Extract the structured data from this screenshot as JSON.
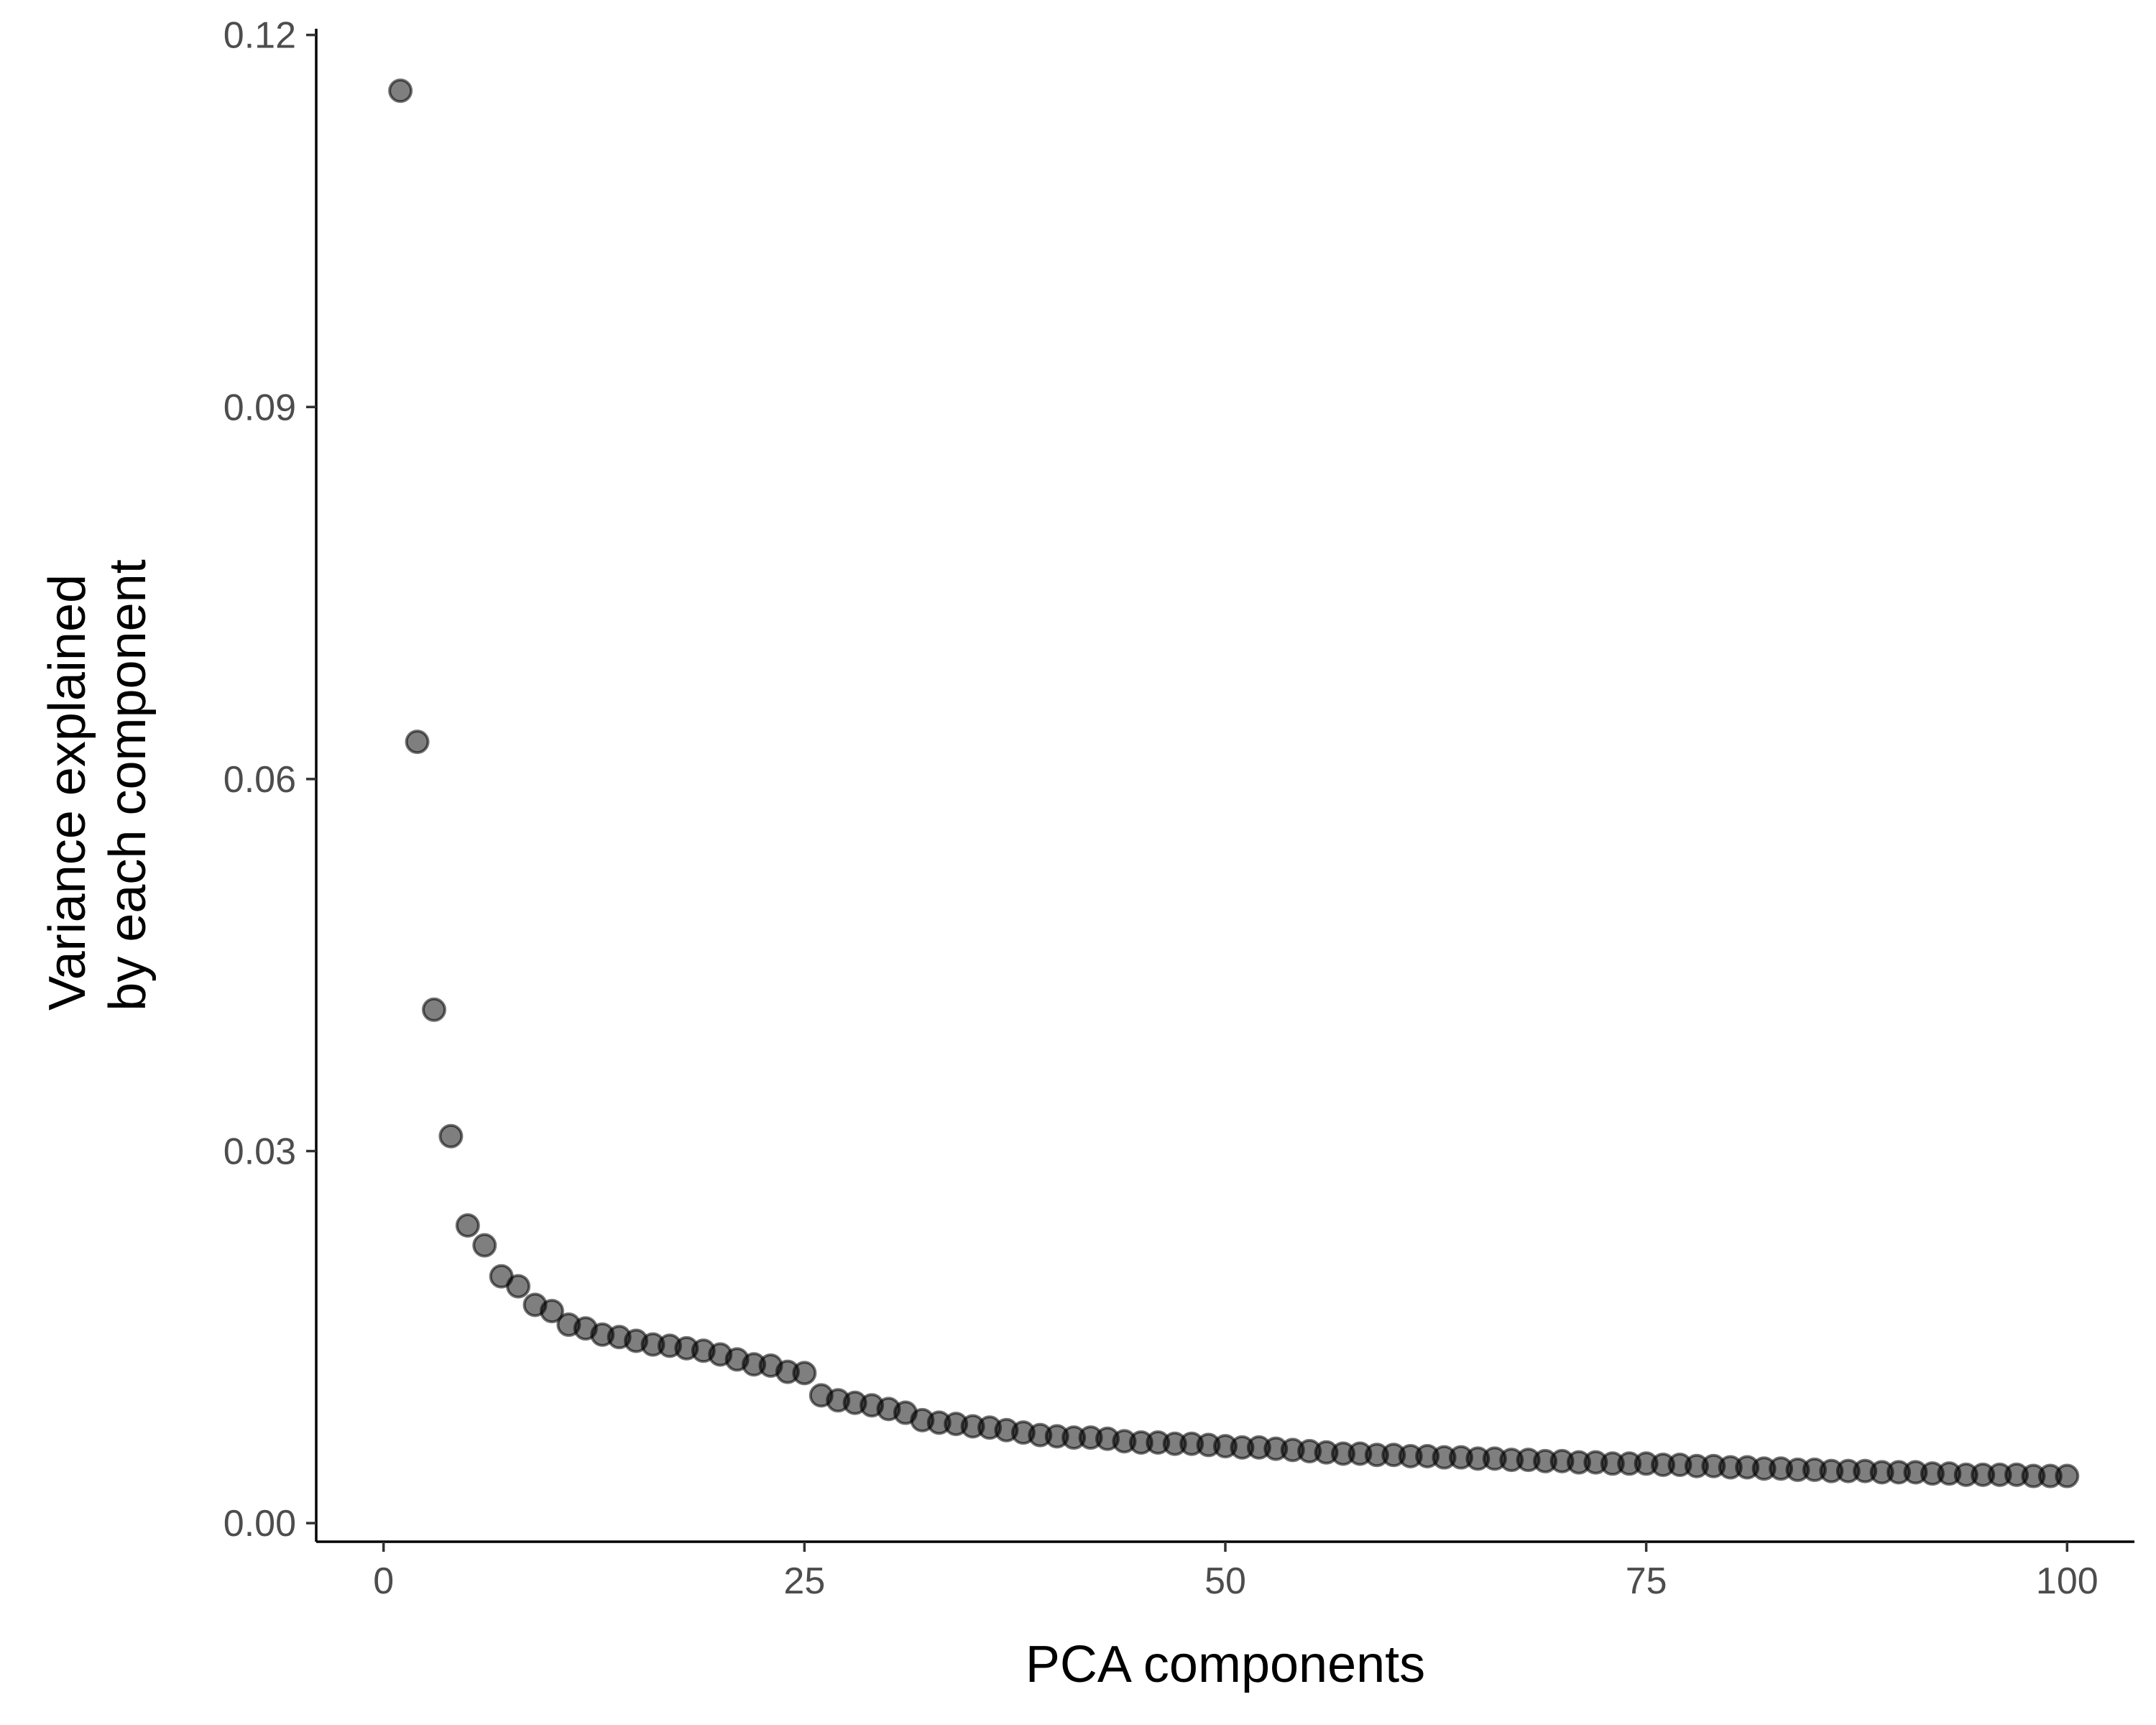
{
  "chart_data": {
    "type": "scatter",
    "xlabel": "PCA components",
    "ylabel_lines": [
      "Variance explained",
      "by each component"
    ],
    "xlim": [
      -4,
      104
    ],
    "ylim": [
      -0.0015,
      0.1205
    ],
    "x_ticks": [
      0,
      25,
      50,
      75,
      100
    ],
    "x_tick_labels": [
      "0",
      "25",
      "50",
      "75",
      "100"
    ],
    "y_ticks": [
      0,
      0.03,
      0.06,
      0.09,
      0.12
    ],
    "y_tick_labels": [
      "0.00",
      "0.03",
      "0.06",
      "0.09",
      "0.12"
    ],
    "grid": false,
    "colors": {
      "point": "#000000",
      "axis": "#000000",
      "tick_label": "#4d4d4d"
    },
    "x": [
      1,
      2,
      3,
      4,
      5,
      6,
      7,
      8,
      9,
      10,
      11,
      12,
      13,
      14,
      15,
      16,
      17,
      18,
      19,
      20,
      21,
      22,
      23,
      24,
      25,
      26,
      27,
      28,
      29,
      30,
      31,
      32,
      33,
      34,
      35,
      36,
      37,
      38,
      39,
      40,
      41,
      42,
      43,
      44,
      45,
      46,
      47,
      48,
      49,
      50,
      51,
      52,
      53,
      54,
      55,
      56,
      57,
      58,
      59,
      60,
      61,
      62,
      63,
      64,
      65,
      66,
      67,
      68,
      69,
      70,
      71,
      72,
      73,
      74,
      75,
      76,
      77,
      78,
      79,
      80,
      81,
      82,
      83,
      84,
      85,
      86,
      87,
      88,
      89,
      90,
      91,
      92,
      93,
      94,
      95,
      96,
      97,
      98,
      99,
      100
    ],
    "y": [
      0.1155,
      0.063,
      0.0414,
      0.0312,
      0.024,
      0.0224,
      0.0199,
      0.0191,
      0.0176,
      0.0171,
      0.016,
      0.0157,
      0.0152,
      0.015,
      0.0147,
      0.0144,
      0.0143,
      0.0141,
      0.0139,
      0.0136,
      0.0132,
      0.0128,
      0.0127,
      0.0122,
      0.0121,
      0.0103,
      0.0099,
      0.0097,
      0.0095,
      0.0092,
      0.0089,
      0.0083,
      0.0081,
      0.008,
      0.0078,
      0.0077,
      0.0075,
      0.0073,
      0.0071,
      0.007,
      0.0069,
      0.0069,
      0.0068,
      0.0066,
      0.0065,
      0.0065,
      0.0064,
      0.0064,
      0.0063,
      0.0062,
      0.0061,
      0.0061,
      0.006,
      0.0059,
      0.0058,
      0.0057,
      0.0056,
      0.0056,
      0.0055,
      0.0055,
      0.0054,
      0.0054,
      0.0053,
      0.0053,
      0.0052,
      0.0052,
      0.0051,
      0.0051,
      0.005,
      0.005,
      0.0049,
      0.0049,
      0.0048,
      0.0048,
      0.0048,
      0.0047,
      0.0047,
      0.0046,
      0.0046,
      0.0045,
      0.0045,
      0.0044,
      0.0044,
      0.0043,
      0.0043,
      0.0042,
      0.0042,
      0.0042,
      0.0041,
      0.0041,
      0.0041,
      0.004,
      0.004,
      0.0039,
      0.0039,
      0.0039,
      0.0039,
      0.0038,
      0.0038,
      0.0038
    ]
  }
}
